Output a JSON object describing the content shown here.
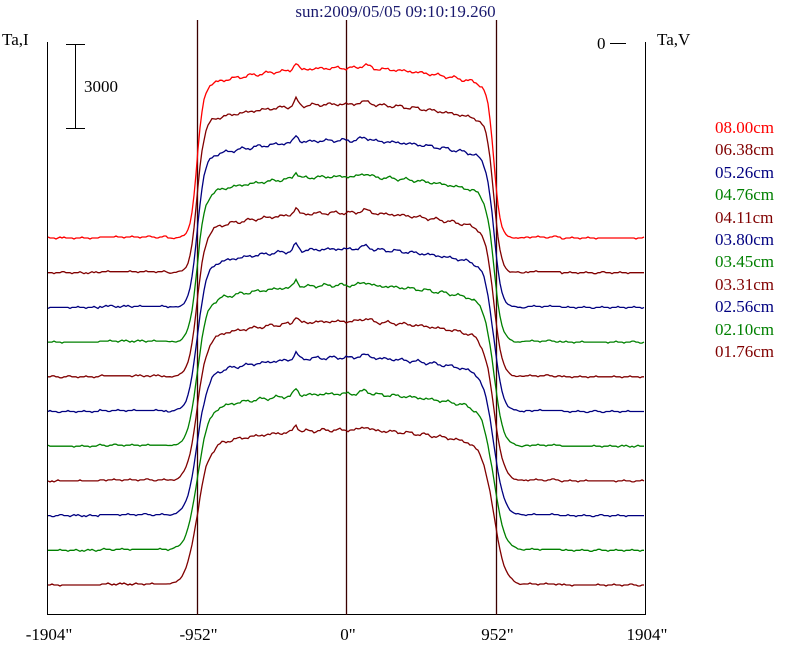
{
  "chart_data": {
    "type": "line",
    "title": "sun:2009/05/05 09:10:19.260",
    "ylabel_left": "Ta,I",
    "ylabel_right": "Ta,V",
    "scale_bar_label": "3000",
    "zero_marker_label": "0",
    "x_tick_labels": [
      "-1904\"",
      "-952\"",
      "0\"",
      "952\"",
      "1904\""
    ],
    "x_ticks": [
      -1904,
      -952,
      0,
      952,
      1904
    ],
    "xlim": [
      -1904,
      1904
    ],
    "vertical_lines": [
      -952,
      0,
      952
    ],
    "series": [
      {
        "name": "08.00cm",
        "color": "#ff0000"
      },
      {
        "name": "06.38cm",
        "color": "#800000"
      },
      {
        "name": "05.26cm",
        "color": "#000080"
      },
      {
        "name": "04.76cm",
        "color": "#008000"
      },
      {
        "name": "04.11cm",
        "color": "#800000"
      },
      {
        "name": "03.80cm",
        "color": "#000080"
      },
      {
        "name": "03.45cm",
        "color": "#008000"
      },
      {
        "name": "03.31cm",
        "color": "#800000"
      },
      {
        "name": "02.56cm",
        "color": "#000080"
      },
      {
        "name": "02.10cm",
        "color": "#008000"
      },
      {
        "name": "01.76cm",
        "color": "#800000"
      }
    ]
  }
}
